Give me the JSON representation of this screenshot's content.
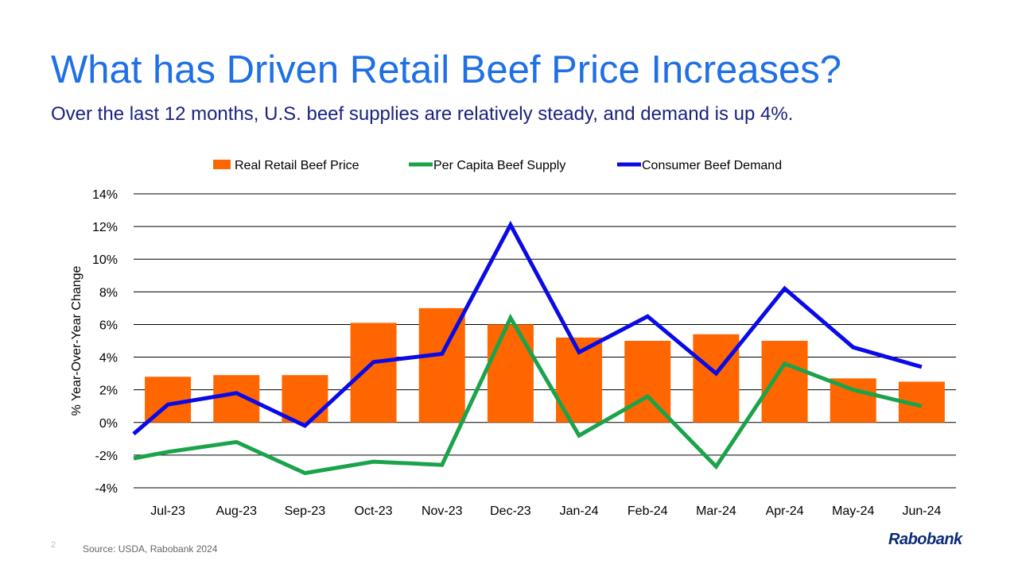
{
  "slide": {
    "title": "What has Driven Retail Beef Price Increases?",
    "subtitle": "Over the last 12 months, U.S. beef supplies are relatively steady, and demand is up 4%.",
    "page_number": "2",
    "source": "Source: USDA, Rabobank 2024",
    "brand": "Rabobank"
  },
  "colors": {
    "title": "#1f6fe5",
    "subtitle": "#1a237e",
    "bar": "#ff6600",
    "supply_line": "#1aa34a",
    "demand_line": "#0a0ae6",
    "gridline": "#000000",
    "brand": "#0b2a7a"
  },
  "chart_data": {
    "type": "bar",
    "categories": [
      "Jul-23",
      "Aug-23",
      "Sep-23",
      "Oct-23",
      "Nov-23",
      "Dec-23",
      "Jan-24",
      "Feb-24",
      "Mar-24",
      "Apr-24",
      "May-24",
      "Jun-24"
    ],
    "series": [
      {
        "name": "Real Retail Beef Price",
        "type": "bar",
        "color": "#ff6600",
        "values": [
          2.8,
          2.9,
          2.9,
          6.1,
          7.0,
          6.0,
          5.2,
          5.0,
          5.4,
          5.0,
          2.7,
          2.5
        ]
      },
      {
        "name": "Per Capita Beef Supply",
        "type": "line",
        "color": "#1aa34a",
        "values": [
          -1.8,
          -1.2,
          -3.1,
          -2.4,
          -2.6,
          6.4,
          -0.8,
          1.6,
          -2.7,
          3.6,
          2.0,
          1.0
        ],
        "start_value": -2.2,
        "end_value": null
      },
      {
        "name": "Consumer Beef Demand",
        "type": "line",
        "color": "#0a0ae6",
        "values": [
          1.1,
          1.8,
          -0.2,
          3.7,
          4.2,
          12.1,
          4.3,
          6.5,
          3.0,
          8.2,
          4.6,
          3.4
        ],
        "start_value": -0.7,
        "end_value": null
      }
    ],
    "ylabel": "% Year-Over-Year  Change",
    "xlabel": "",
    "ylim": [
      -4,
      14
    ],
    "yticks": [
      -4,
      -2,
      0,
      2,
      4,
      6,
      8,
      10,
      12,
      14
    ],
    "ytick_format": "percent",
    "grid": true,
    "legend": "top-center"
  }
}
